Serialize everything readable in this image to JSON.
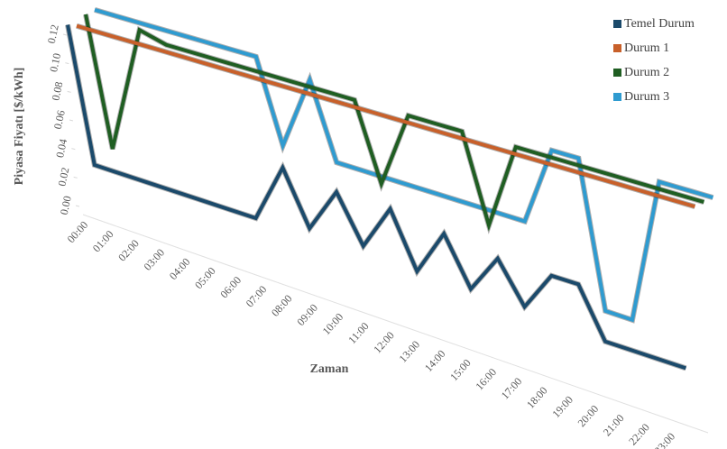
{
  "chart_data": {
    "type": "line",
    "x_label": "Zaman",
    "y_label": "Piyasa Fiyatı [$/kWh]",
    "categories": [
      "00:00",
      "01:00",
      "02:00",
      "03:00",
      "04:00",
      "05:00",
      "06:00",
      "07:00",
      "08:00",
      "09:00",
      "10:00",
      "11:00",
      "12:00",
      "13:00",
      "14:00",
      "15:00",
      "16:00",
      "17:00",
      "18:00",
      "19:00",
      "20:00",
      "21:00",
      "22:00",
      "23:00"
    ],
    "series": [
      {
        "name": "Temel Durum",
        "color": "#1b4a6b",
        "values": [
          0.124,
          0.03,
          0.03,
          0.03,
          0.03,
          0.03,
          0.03,
          0.03,
          0.07,
          0.035,
          0.065,
          0.035,
          0.065,
          0.03,
          0.06,
          0.03,
          0.055,
          0.03,
          0.055,
          0.055,
          0.025,
          0.025,
          0.025,
          0.025
        ]
      },
      {
        "name": "Durum 1",
        "color": "#c8602a",
        "values": [
          0.12,
          0.12,
          0.12,
          0.12,
          0.12,
          0.12,
          0.12,
          0.12,
          0.12,
          0.12,
          0.12,
          0.12,
          0.12,
          0.12,
          0.12,
          0.12,
          0.12,
          0.12,
          0.12,
          0.12,
          0.12,
          0.12,
          0.12,
          0.12
        ]
      },
      {
        "name": "Durum 2",
        "color": "#1f5e22",
        "values": [
          0.125,
          0.035,
          0.125,
          0.12,
          0.12,
          0.12,
          0.12,
          0.12,
          0.12,
          0.12,
          0.12,
          0.07,
          0.12,
          0.12,
          0.12,
          0.065,
          0.12,
          0.12,
          0.12,
          0.12,
          0.12,
          0.12,
          0.12,
          0.12
        ]
      },
      {
        "name": "Durum 3",
        "color": "#2f9bd0",
        "values": [
          0.125,
          0.125,
          0.125,
          0.125,
          0.125,
          0.125,
          0.125,
          0.07,
          0.12,
          0.07,
          0.07,
          0.07,
          0.07,
          0.07,
          0.07,
          0.07,
          0.07,
          0.12,
          0.12,
          0.03,
          0.03,
          0.12,
          0.12,
          0.12
        ]
      }
    ],
    "ylim": [
      0,
      0.12
    ],
    "yticks": [
      {
        "value": 0,
        "label": "0.00"
      },
      {
        "value": 0.02,
        "label": "0.02"
      },
      {
        "value": 0.04,
        "label": "0.04"
      },
      {
        "value": 0.06,
        "label": "0.06"
      },
      {
        "value": 0.08,
        "label": "0.08"
      },
      {
        "value": 0.1,
        "label": "0.10"
      },
      {
        "value": 0.12,
        "label": "0.12"
      }
    ],
    "grid": false,
    "legend": "top-right"
  }
}
